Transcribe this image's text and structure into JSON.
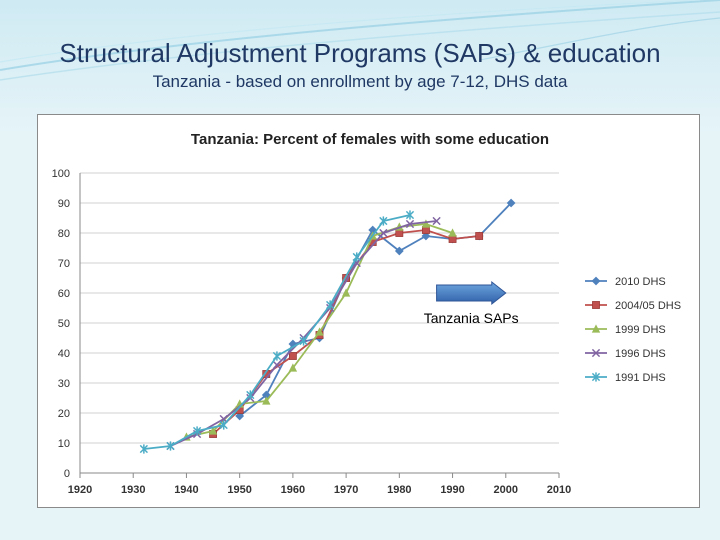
{
  "slide": {
    "title": "Structural Adjustment Programs (SAPs) & education",
    "subtitle": "Tanzania - based on enrollment by age 7-12, DHS data"
  },
  "chart_data": {
    "type": "line",
    "title": "Tanzania: Percent of females with some education",
    "xlabel": "",
    "ylabel": "",
    "xlim": [
      1920,
      2010
    ],
    "ylim": [
      0,
      100
    ],
    "x_ticks": [
      "1920",
      "1930",
      "1940",
      "1950",
      "1960",
      "1970",
      "1980",
      "1990",
      "2000",
      "2010"
    ],
    "y_ticks": [
      "0",
      "10",
      "20",
      "30",
      "40",
      "50",
      "60",
      "70",
      "80",
      "90",
      "100"
    ],
    "grid": "horizontal",
    "legend": "right",
    "annotation": {
      "label": "Tanzania SAPs",
      "arrow_from": 1987,
      "arrow_to": 2000,
      "arrow_y": 60
    },
    "series": [
      {
        "name": "2010 DHS",
        "color": "#4f81bd",
        "marker": "diamond",
        "x": [
          1950,
          1955,
          1960,
          1965,
          1970,
          1975,
          1980,
          1985,
          1990,
          1995,
          2001
        ],
        "y": [
          19,
          26,
          43,
          45,
          65,
          81,
          74,
          79,
          78,
          79,
          90
        ]
      },
      {
        "name": "2004/05 DHS",
        "color": "#c0504d",
        "marker": "square",
        "x": [
          1945,
          1950,
          1955,
          1960,
          1965,
          1970,
          1975,
          1980,
          1985,
          1990,
          1995
        ],
        "y": [
          13,
          21,
          33,
          39,
          46,
          65,
          77,
          80,
          81,
          78,
          79
        ]
      },
      {
        "name": "1999 DHS",
        "color": "#9bbb59",
        "marker": "triangle",
        "x": [
          1940,
          1945,
          1950,
          1955,
          1960,
          1965,
          1970,
          1975,
          1980,
          1985,
          1990
        ],
        "y": [
          12,
          14,
          23,
          24,
          35,
          47,
          60,
          79,
          82,
          83,
          80
        ]
      },
      {
        "name": "1996 DHS",
        "color": "#8064a2",
        "marker": "x",
        "x": [
          1937,
          1942,
          1947,
          1952,
          1957,
          1962,
          1967,
          1972,
          1977,
          1982,
          1987
        ],
        "y": [
          9,
          13,
          18,
          25,
          36,
          45,
          55,
          70,
          80,
          83,
          84
        ]
      },
      {
        "name": "1991 DHS",
        "color": "#4bacc6",
        "marker": "star",
        "x": [
          1932,
          1937,
          1942,
          1947,
          1952,
          1957,
          1962,
          1967,
          1972,
          1977,
          1982
        ],
        "y": [
          8,
          9,
          14,
          16,
          26,
          39,
          44,
          56,
          72,
          84,
          86
        ]
      }
    ]
  }
}
